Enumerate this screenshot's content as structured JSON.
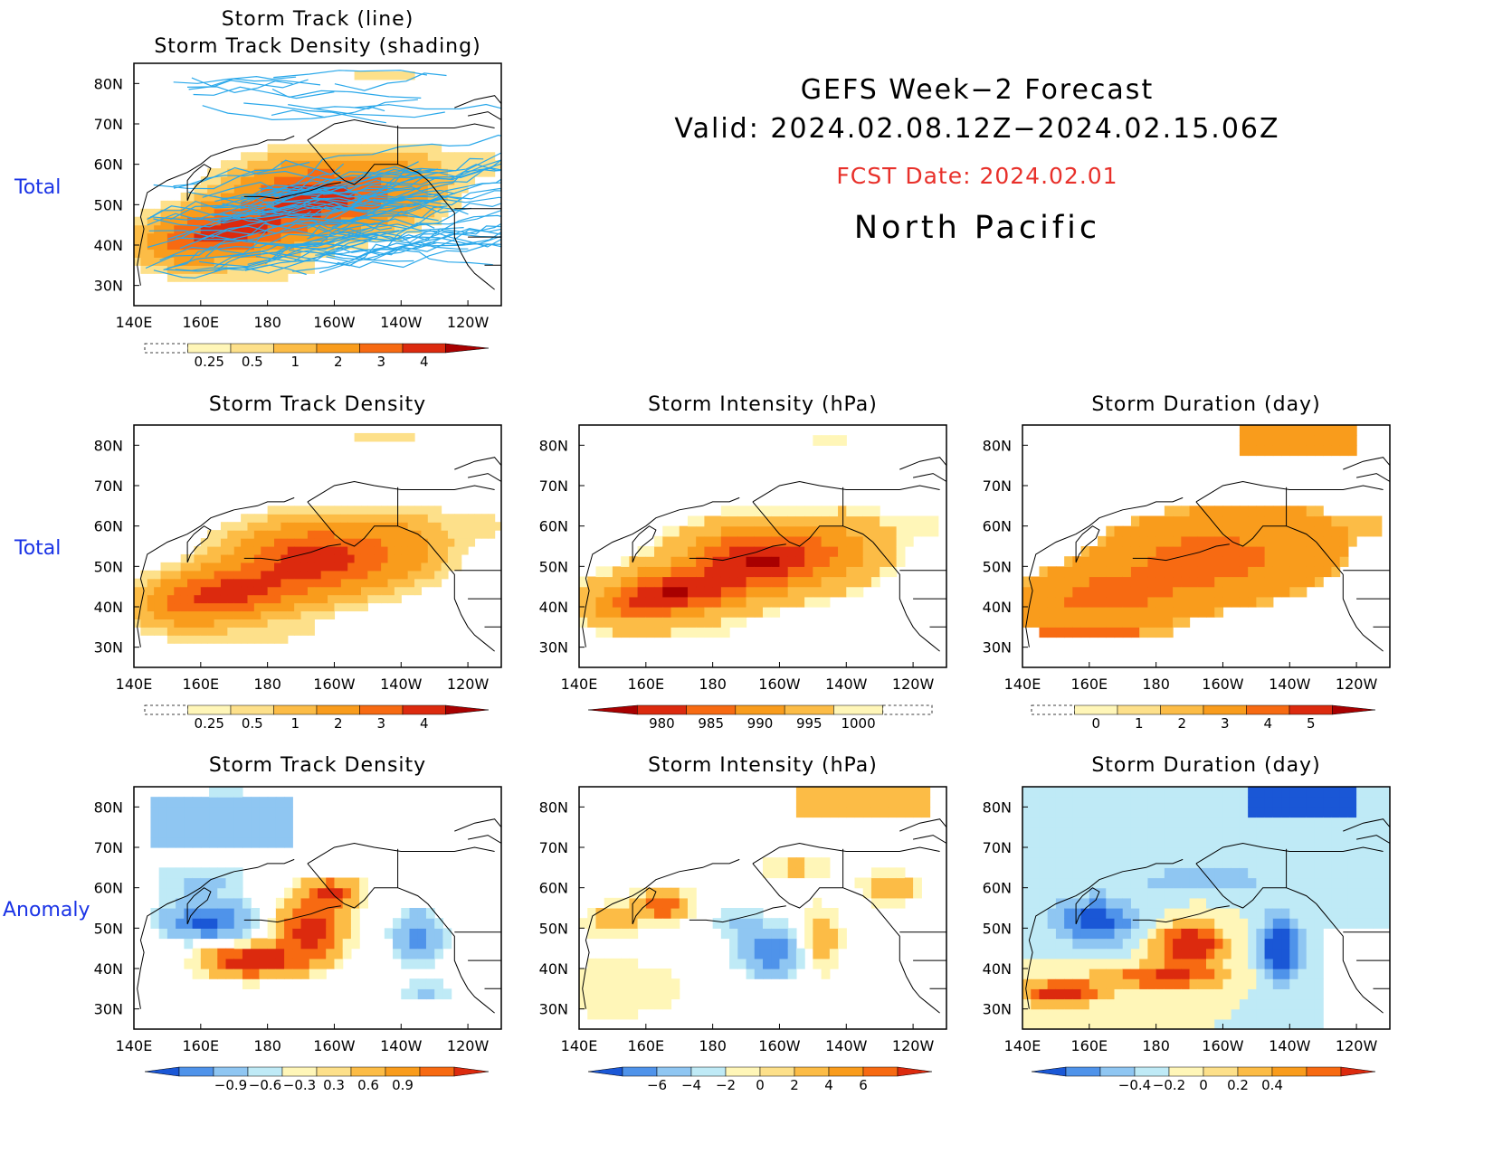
{
  "header": {
    "line1": "GEFS Week−2 Forecast",
    "line2": "Valid: 2024.02.08.12Z−2024.02.15.06Z",
    "fcst_date": "FCST Date: 2024.02.01",
    "region": "North Pacific"
  },
  "row_labels": {
    "row1": "Total",
    "row2": "Total",
    "row3": "Anomaly"
  },
  "axes": {
    "lon_labels": [
      "140E",
      "160E",
      "180",
      "160W",
      "140W",
      "120W"
    ],
    "lat_labels": [
      "80N",
      "70N",
      "60N",
      "50N",
      "40N",
      "30N"
    ]
  },
  "colors": {
    "border": "#000000",
    "track_line": "#2aa8ea",
    "total_scale": [
      "#fff6b8",
      "#fde08a",
      "#fcbc46",
      "#f99c1c",
      "#f76a12",
      "#dc2a0e",
      "#a80000"
    ],
    "pressure_scale": [
      "#a80000",
      "#dc2a0e",
      "#f76a12",
      "#f99c1c",
      "#fcbc46",
      "#fff6b8"
    ],
    "anom_scale": [
      "#1a57d6",
      "#4f93ea",
      "#8fc6f2",
      "#bfeaf6",
      "#fff6b8",
      "#fde08a",
      "#fcbc46",
      "#f99c1c",
      "#f76a12",
      "#dc2a0e"
    ]
  },
  "panels": [
    {
      "id": "p1",
      "title_line1": "Storm Track (line)",
      "title_line2": "Storm Track Density (shading)",
      "colorbar": [
        "0.25",
        "0.5",
        "1",
        "2",
        "3",
        "4"
      ],
      "field": "density",
      "tracks": true
    },
    {
      "id": "p2",
      "title_line1": "Storm Track Density",
      "colorbar": [
        "0.25",
        "0.5",
        "1",
        "2",
        "3",
        "4"
      ],
      "field": "density"
    },
    {
      "id": "p3",
      "title_line1": "Storm Intensity (hPa)",
      "colorbar": [
        "980",
        "985",
        "990",
        "995",
        "1000"
      ],
      "field": "intensity"
    },
    {
      "id": "p4",
      "title_line1": "Storm Duration (day)",
      "colorbar": [
        "0",
        "1",
        "2",
        "3",
        "4",
        "5"
      ],
      "field": "duration"
    },
    {
      "id": "p5",
      "title_line1": "Storm Track Density",
      "colorbar": [
        "−0.9",
        "−0.6",
        "−0.3",
        "0.3",
        "0.6",
        "0.9"
      ],
      "field": "density_anom"
    },
    {
      "id": "p6",
      "title_line1": "Storm Intensity (hPa)",
      "colorbar": [
        "−6",
        "−4",
        "−2",
        "0",
        "2",
        "4",
        "6"
      ],
      "field": "intensity_anom"
    },
    {
      "id": "p7",
      "title_line1": "Storm Duration (day)",
      "colorbar": [
        "−0.4",
        "−0.2",
        "0",
        "0.2",
        "0.4"
      ],
      "field": "duration_anom"
    }
  ]
}
